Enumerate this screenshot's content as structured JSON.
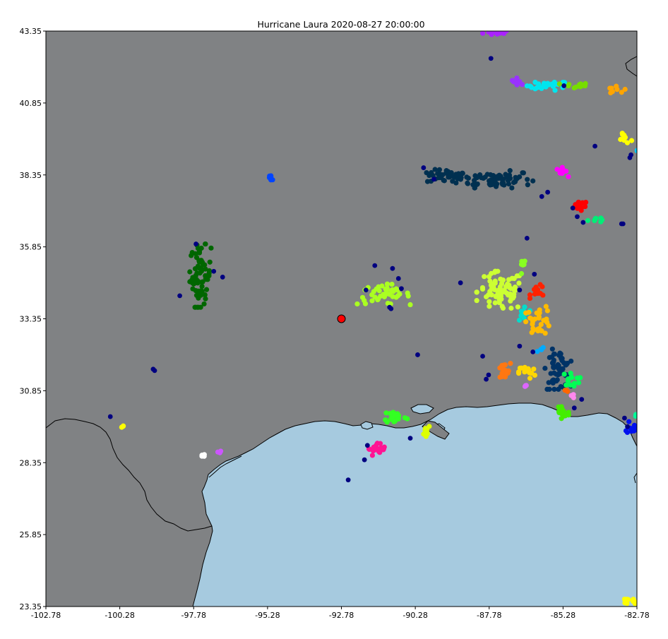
{
  "chart_data": {
    "type": "scatter",
    "title": "Hurricane Laura 2020-08-27 20:00:00",
    "xlabel": "",
    "ylabel": "",
    "xlim": [
      -102.78,
      -82.78
    ],
    "ylim": [
      23.35,
      43.35
    ],
    "x_tick_labels": [
      "-102.78",
      "-100.28",
      "-97.78",
      "-95.28",
      "-92.78",
      "-90.28",
      "-87.78",
      "-85.28",
      "-82.78"
    ],
    "y_tick_labels": [
      "43.35",
      "40.85",
      "38.35",
      "35.85",
      "33.35",
      "30.85",
      "28.35",
      "25.85",
      "23.35"
    ],
    "grid": false,
    "legend": "none",
    "map": {
      "land_color": "#808284",
      "water_color": "#a6cadf",
      "coastline_color": "#000000"
    },
    "hurricane_center": {
      "lon": -92.78,
      "lat": 33.35,
      "fill": "#ff0000",
      "edge": "#000000"
    },
    "clusters": [
      {
        "color": "#aa22ff",
        "lon": -87.5,
        "lat": 43.3,
        "slon": 0.25,
        "slat": 0.05,
        "n": 18
      },
      {
        "color": "#9933ff",
        "lon": -86.8,
        "lat": 41.6,
        "slon": 0.12,
        "slat": 0.06,
        "n": 8
      },
      {
        "color": "#00e5ee",
        "lon": -85.8,
        "lat": 41.45,
        "slon": 0.35,
        "slat": 0.08,
        "n": 26
      },
      {
        "color": "#77dd00",
        "lon": -84.9,
        "lat": 41.45,
        "slon": 0.25,
        "slat": 0.05,
        "n": 12
      },
      {
        "color": "#ffa500",
        "lon": -83.5,
        "lat": 41.3,
        "slon": 0.18,
        "slat": 0.08,
        "n": 8
      },
      {
        "color": "#ffff00",
        "lon": -83.2,
        "lat": 39.6,
        "slon": 0.12,
        "slat": 0.1,
        "n": 10
      },
      {
        "color": "#00ccff",
        "lon": -82.75,
        "lat": 39.25,
        "slon": 0.05,
        "slat": 0.05,
        "n": 3
      },
      {
        "color": "#003050",
        "lon": -89.2,
        "lat": 38.3,
        "slon": 0.35,
        "slat": 0.12,
        "n": 40
      },
      {
        "color": "#003050",
        "lon": -87.6,
        "lat": 38.2,
        "slon": 0.65,
        "slat": 0.15,
        "n": 70
      },
      {
        "color": "#ff00ff",
        "lon": -85.3,
        "lat": 38.45,
        "slon": 0.1,
        "slat": 0.08,
        "n": 10
      },
      {
        "color": "#ff0000",
        "lon": -84.75,
        "lat": 37.3,
        "slon": 0.12,
        "slat": 0.12,
        "n": 14
      },
      {
        "color": "#00ee77",
        "lon": -84.2,
        "lat": 36.8,
        "slon": 0.12,
        "slat": 0.05,
        "n": 8
      },
      {
        "color": "#0044ff",
        "lon": -95.15,
        "lat": 38.25,
        "slon": 0.08,
        "slat": 0.08,
        "n": 6
      },
      {
        "color": "#006600",
        "lon": -97.55,
        "lat": 34.85,
        "slon": 0.18,
        "slat": 0.55,
        "n": 70
      },
      {
        "color": "#aaff22",
        "lon": -91.35,
        "lat": 34.2,
        "slon": 0.45,
        "slat": 0.18,
        "n": 45
      },
      {
        "color": "#ccff33",
        "lon": -87.4,
        "lat": 34.3,
        "slon": 0.4,
        "slat": 0.35,
        "n": 80
      },
      {
        "color": "#88ff22",
        "lon": -86.65,
        "lat": 35.1,
        "slon": 0.05,
        "slat": 0.18,
        "n": 8
      },
      {
        "color": "#ff2200",
        "lon": -86.1,
        "lat": 34.3,
        "slon": 0.15,
        "slat": 0.12,
        "n": 12
      },
      {
        "color": "#00ddcc",
        "lon": -86.6,
        "lat": 33.5,
        "slon": 0.1,
        "slat": 0.2,
        "n": 10
      },
      {
        "color": "#ffbb00",
        "lon": -86.1,
        "lat": 33.3,
        "slon": 0.22,
        "slat": 0.25,
        "n": 30
      },
      {
        "color": "#00aaff",
        "lon": -86.0,
        "lat": 32.25,
        "slon": 0.08,
        "slat": 0.05,
        "n": 4
      },
      {
        "color": "#003366",
        "lon": -85.45,
        "lat": 31.6,
        "slon": 0.22,
        "slat": 0.35,
        "n": 60
      },
      {
        "color": "#00ff55",
        "lon": -85.0,
        "lat": 31.25,
        "slon": 0.15,
        "slat": 0.12,
        "n": 14
      },
      {
        "color": "#ff6600",
        "lon": -85.2,
        "lat": 30.85,
        "slon": 0.05,
        "slat": 0.03,
        "n": 3
      },
      {
        "color": "#ff7711",
        "lon": -87.3,
        "lat": 31.5,
        "slon": 0.12,
        "slat": 0.15,
        "n": 20
      },
      {
        "color": "#ffd700",
        "lon": -86.5,
        "lat": 31.5,
        "slon": 0.14,
        "slat": 0.12,
        "n": 16
      },
      {
        "color": "#dd66ff",
        "lon": -86.55,
        "lat": 31.0,
        "slon": 0.08,
        "slat": 0.03,
        "n": 4
      },
      {
        "color": "#44ee00",
        "lon": -85.3,
        "lat": 30.1,
        "slon": 0.12,
        "slat": 0.22,
        "n": 18
      },
      {
        "color": "#ff88ee",
        "lon": -84.95,
        "lat": 30.65,
        "slon": 0.05,
        "slat": 0.05,
        "n": 3
      },
      {
        "color": "#33ff22",
        "lon": -90.95,
        "lat": 29.95,
        "slon": 0.2,
        "slat": 0.12,
        "n": 24
      },
      {
        "color": "#ddff00",
        "lon": -89.9,
        "lat": 29.5,
        "slon": 0.08,
        "slat": 0.12,
        "n": 10
      },
      {
        "color": "#ff1493",
        "lon": -91.55,
        "lat": 28.8,
        "slon": 0.15,
        "slat": 0.12,
        "n": 24
      },
      {
        "color": "#ffffff",
        "lon": -97.5,
        "lat": 28.6,
        "slon": 0.05,
        "slat": 0.03,
        "n": 4
      },
      {
        "color": "#cc55ff",
        "lon": -96.9,
        "lat": 28.75,
        "slon": 0.03,
        "slat": 0.05,
        "n": 3
      },
      {
        "color": "#ffff00",
        "lon": -100.2,
        "lat": 29.6,
        "slon": 0.04,
        "slat": 0.03,
        "n": 3
      },
      {
        "color": "#00ff99",
        "lon": -82.8,
        "lat": 30.0,
        "slon": 0.03,
        "slat": 0.03,
        "n": 2
      },
      {
        "color": "#0011ee",
        "lon": -82.85,
        "lat": 29.6,
        "slon": 0.15,
        "slat": 0.12,
        "n": 14
      },
      {
        "color": "#ffff00",
        "lon": -82.9,
        "lat": 23.55,
        "slon": 0.15,
        "slat": 0.05,
        "n": 10
      }
    ],
    "isolated_points": {
      "color": "#000080",
      "points": [
        [
          -87.72,
          42.4
        ],
        [
          -85.25,
          41.45
        ],
        [
          -84.2,
          39.35
        ],
        [
          -83.02,
          38.95
        ],
        [
          -82.98,
          39.05
        ],
        [
          -90.0,
          38.6
        ],
        [
          -89.65,
          38.2
        ],
        [
          -86.0,
          37.6
        ],
        [
          -85.8,
          37.75
        ],
        [
          -84.95,
          37.2
        ],
        [
          -84.8,
          36.9
        ],
        [
          -84.6,
          36.7
        ],
        [
          -83.3,
          36.65
        ],
        [
          -83.25,
          36.65
        ],
        [
          -86.5,
          36.15
        ],
        [
          -97.7,
          35.95
        ],
        [
          -97.1,
          35.0
        ],
        [
          -96.8,
          34.8
        ],
        [
          -98.25,
          34.15
        ],
        [
          -91.65,
          35.2
        ],
        [
          -91.05,
          35.1
        ],
        [
          -90.85,
          34.75
        ],
        [
          -91.1,
          33.7
        ],
        [
          -91.15,
          33.75
        ],
        [
          -88.75,
          34.6
        ],
        [
          -86.25,
          34.9
        ],
        [
          -86.75,
          34.35
        ],
        [
          -88.0,
          32.05
        ],
        [
          -87.8,
          31.4
        ],
        [
          -87.88,
          31.25
        ],
        [
          -86.75,
          32.4
        ],
        [
          -86.3,
          32.2
        ],
        [
          -90.75,
          34.4
        ],
        [
          -91.95,
          34.35
        ],
        [
          -90.2,
          32.1
        ],
        [
          -99.15,
          31.6
        ],
        [
          -99.1,
          31.55
        ],
        [
          -100.6,
          29.95
        ],
        [
          -84.65,
          30.55
        ],
        [
          -84.9,
          30.25
        ],
        [
          -91.9,
          28.95
        ],
        [
          -92.0,
          28.45
        ],
        [
          -92.55,
          27.75
        ],
        [
          -83.2,
          29.9
        ],
        [
          -83.1,
          29.6
        ],
        [
          -90.45,
          29.2
        ]
      ]
    }
  }
}
